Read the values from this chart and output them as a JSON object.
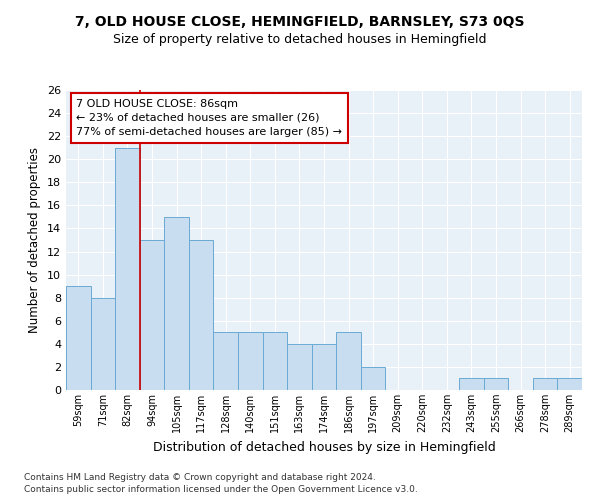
{
  "title": "7, OLD HOUSE CLOSE, HEMINGFIELD, BARNSLEY, S73 0QS",
  "subtitle": "Size of property relative to detached houses in Hemingfield",
  "xlabel": "Distribution of detached houses by size in Hemingfield",
  "ylabel": "Number of detached properties",
  "categories": [
    "59sqm",
    "71sqm",
    "82sqm",
    "94sqm",
    "105sqm",
    "117sqm",
    "128sqm",
    "140sqm",
    "151sqm",
    "163sqm",
    "174sqm",
    "186sqm",
    "197sqm",
    "209sqm",
    "220sqm",
    "232sqm",
    "243sqm",
    "255sqm",
    "266sqm",
    "278sqm",
    "289sqm"
  ],
  "values": [
    9,
    8,
    21,
    13,
    15,
    13,
    5,
    5,
    5,
    4,
    4,
    5,
    2,
    0,
    0,
    0,
    1,
    1,
    0,
    1,
    1
  ],
  "bar_color": "#c9ddf0",
  "bar_edge_color": "#6aaad4",
  "vline_x_index": 2,
  "vline_color": "#cc0000",
  "annotation_line1": "7 OLD HOUSE CLOSE: 86sqm",
  "annotation_line2": "← 23% of detached houses are smaller (26)",
  "annotation_line3": "77% of semi-detached houses are larger (85) →",
  "annotation_box_color": "#ffffff",
  "annotation_box_edge": "#cc0000",
  "ylim": [
    0,
    26
  ],
  "yticks": [
    0,
    2,
    4,
    6,
    8,
    10,
    12,
    14,
    16,
    18,
    20,
    22,
    24,
    26
  ],
  "bg_color": "#e8f0f8",
  "grid_color": "#ffffff",
  "footer_line1": "Contains HM Land Registry data © Crown copyright and database right 2024.",
  "footer_line2": "Contains public sector information licensed under the Open Government Licence v3.0."
}
